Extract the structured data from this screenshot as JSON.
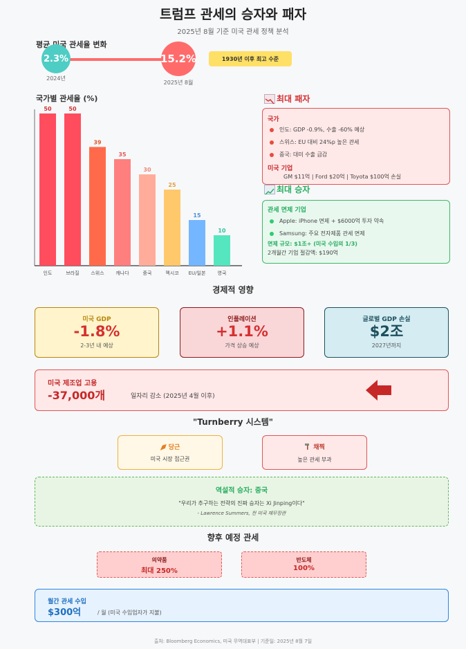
{
  "header": {
    "title": "트럼프 관세의 승자와 패자",
    "subtitle": "2025년 8월 기준 미국 관세 정책 분석"
  },
  "avg_tariff": {
    "label": "평균 미국 관세율 변화",
    "from_value": "2.3%",
    "from_caption": "2024년",
    "to_value": "15.2%",
    "to_caption": "2025년 8월",
    "badge": "1930년 이후 최고 수준",
    "colors": {
      "from": "#4ecdc4",
      "to": "#ff6b6b",
      "line": "#ff6b6b",
      "badge": "#ffe066"
    }
  },
  "chart_data": {
    "type": "bar",
    "title": "국가별 관세율 (%)",
    "categories": [
      "인도",
      "브라질",
      "스위스",
      "캐나다",
      "중국",
      "멕시코",
      "EU/일본",
      "영국"
    ],
    "values": [
      50,
      50,
      39,
      35,
      30,
      25,
      15,
      10
    ],
    "ylim": [
      0,
      50
    ],
    "colors": [
      "#ff4d5e",
      "#ff4d5e",
      "#ff6b4a",
      "#ff7f7f",
      "#ffad9a",
      "#ffc96b",
      "#74b6ff",
      "#55e6bf"
    ],
    "label_colors": [
      "#d63031",
      "#d63031",
      "#e05a2b",
      "#e05a5a",
      "#e88a7a",
      "#e0a040",
      "#4a90d9",
      "#2ec4a0"
    ],
    "grid": false
  },
  "losers": {
    "icon": "chart-down-icon",
    "heading": "최대 패자",
    "country_title": "국가",
    "items": [
      "인도: GDP -0.9%, 수출 -60% 예상",
      "스위스: EU 대비 24%p 높은 관세",
      "중국: 대미 수출 급감"
    ],
    "company_title": "미국 기업",
    "company_line": "GM $11억 | Ford $20억 | Toyota $100억 손실",
    "colors": {
      "accent": "#d63031",
      "dot": "#e74c3c"
    }
  },
  "winners": {
    "icon": "chart-up-icon",
    "heading": "최대 승자",
    "company_title": "관세 면제 기업",
    "items": [
      "Apple: iPhone 면제 + $6000억 투자 약속",
      "Samsung: 주요 전자제품 관세 면제"
    ],
    "scale_line": "면제 규모: $1조+ (미국 수입의 1/3)",
    "savings_line": "2개월간 기업 절감액: $190억",
    "colors": {
      "accent": "#27ae60",
      "dot": "#2ecc71"
    }
  },
  "economic": {
    "heading": "경제적 영향",
    "cards": [
      {
        "label": "미국 GDP",
        "value": "-1.8%",
        "note": "2-3년 내 예상",
        "bg": "#fff4cc",
        "border": "#b8860b",
        "label_color": "#b8860b",
        "value_color": "#d63031"
      },
      {
        "label": "인플레이션",
        "value": "+1.1%",
        "note": "가격 상승 예상",
        "bg": "#f9d6d8",
        "border": "#8b1a1a",
        "label_color": "#8b1a1a",
        "value_color": "#d63031"
      },
      {
        "label": "글로벌 GDP 손실",
        "value": "$2조",
        "note": "2027년까지",
        "bg": "#d4ecf2",
        "border": "#1e4f5c",
        "label_color": "#1e4f5c",
        "value_color": "#1e4f5c"
      }
    ],
    "jobs": {
      "label": "미국 제조업 고용",
      "value": "-37,000개",
      "note": "일자리 감소 (2025년 4월 이후)",
      "icon": "arrow-left-icon",
      "color": "#c62828"
    }
  },
  "turnberry": {
    "heading": "\"Turnberry 시스템\"",
    "carrot": {
      "icon": "carrot-icon",
      "label": "당근",
      "desc": "미국 시장 접근권"
    },
    "stick": {
      "icon": "hammer-icon",
      "label": "채찍",
      "desc": "높은 관세 부과"
    }
  },
  "irony": {
    "title": "역설적 승자: 중국",
    "quote": "\"우리가 추구하는 전략의 진짜 승자는 Xi Jinping이다\"",
    "author": "- Lawrence Summers, 전 미국 재무장관"
  },
  "future": {
    "heading": "향후 예정 관세",
    "items": [
      {
        "label": "의약품",
        "value": "최대 250%"
      },
      {
        "label": "반도체",
        "value": "100%"
      }
    ]
  },
  "revenue": {
    "label": "월간 관세 수입",
    "value": "$300억",
    "note": "/ 월 (미국 수입업자가 지불)"
  },
  "footer": "출처: Bloomberg Economics, 미국 무역대표부 | 기준일: 2025년 8월 7일"
}
